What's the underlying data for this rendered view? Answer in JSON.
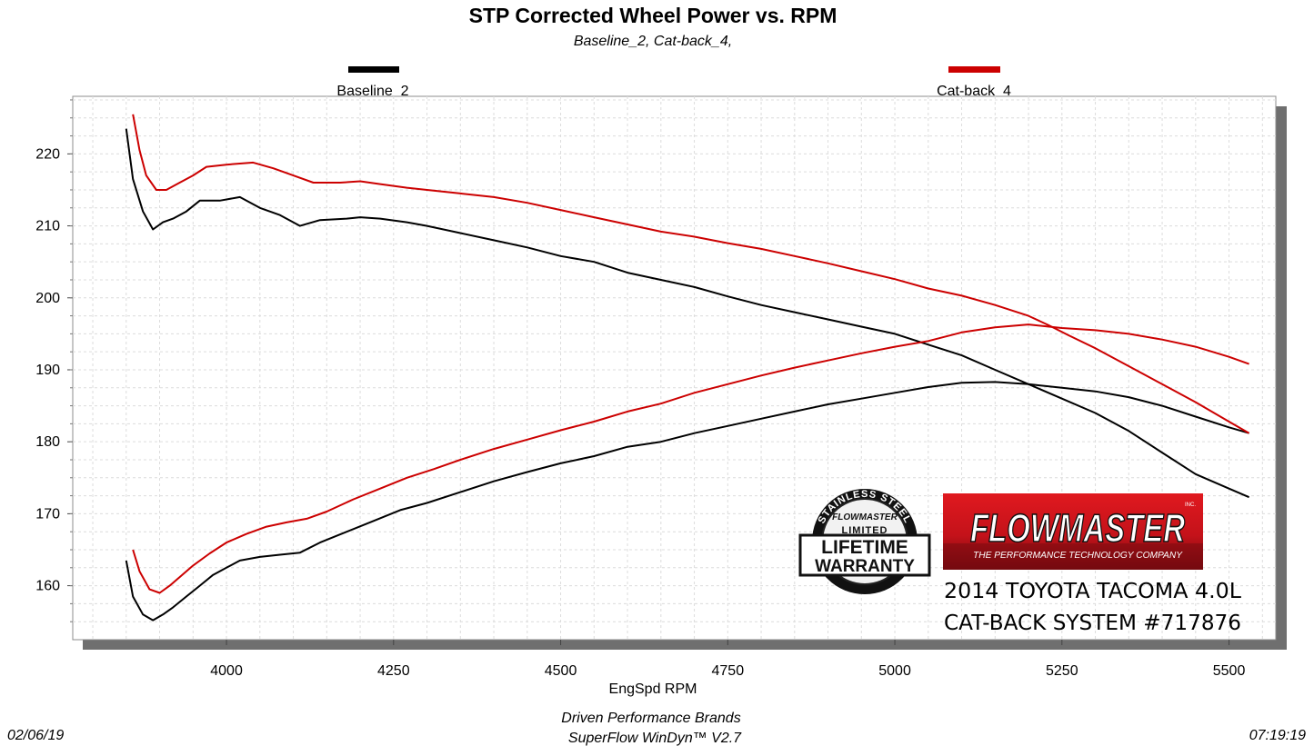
{
  "chart_data": {
    "type": "line",
    "title": "STP Corrected Wheel Power vs. RPM",
    "subtitle": "Baseline_2, Cat-back_4,",
    "xlabel": "EngSpd  RPM",
    "ylabel": "",
    "xlim": [
      3770,
      5570
    ],
    "ylim": [
      152.5,
      228
    ],
    "x_ticks": [
      4000,
      4250,
      4500,
      4750,
      5000,
      5250,
      5500
    ],
    "y_ticks": [
      160,
      170,
      180,
      190,
      200,
      210,
      220
    ],
    "grid": true,
    "legend_position": "top",
    "series": [
      {
        "name": "Baseline_2",
        "measure": "power",
        "color": "#000000",
        "points": [
          [
            3850,
            223.5
          ],
          [
            3860,
            216.5
          ],
          [
            3875,
            212
          ],
          [
            3890,
            209.5
          ],
          [
            3905,
            210.5
          ],
          [
            3920,
            211
          ],
          [
            3940,
            212
          ],
          [
            3960,
            213.5
          ],
          [
            3990,
            213.5
          ],
          [
            4020,
            214
          ],
          [
            4050,
            212.5
          ],
          [
            4080,
            211.5
          ],
          [
            4110,
            210
          ],
          [
            4140,
            210.8
          ],
          [
            4180,
            211
          ],
          [
            4200,
            211.2
          ],
          [
            4230,
            211
          ],
          [
            4270,
            210.5
          ],
          [
            4300,
            210
          ],
          [
            4350,
            209
          ],
          [
            4400,
            208
          ],
          [
            4450,
            207
          ],
          [
            4500,
            205.8
          ],
          [
            4550,
            205
          ],
          [
            4600,
            203.5
          ],
          [
            4650,
            202.5
          ],
          [
            4700,
            201.5
          ],
          [
            4750,
            200.2
          ],
          [
            4800,
            199
          ],
          [
            4850,
            198
          ],
          [
            4900,
            197
          ],
          [
            4950,
            196
          ],
          [
            5000,
            195
          ],
          [
            5050,
            193.5
          ],
          [
            5100,
            192
          ],
          [
            5150,
            190
          ],
          [
            5200,
            188
          ],
          [
            5250,
            186
          ],
          [
            5300,
            184
          ],
          [
            5350,
            181.5
          ],
          [
            5400,
            178.5
          ],
          [
            5450,
            175.5
          ],
          [
            5500,
            173.5
          ],
          [
            5530,
            172.3
          ]
        ]
      },
      {
        "name": "Baseline_2",
        "measure": "torque",
        "color": "#000000",
        "points": [
          [
            3850,
            163.5
          ],
          [
            3860,
            158.5
          ],
          [
            3875,
            156
          ],
          [
            3890,
            155.2
          ],
          [
            3905,
            156
          ],
          [
            3920,
            157
          ],
          [
            3940,
            158.5
          ],
          [
            3960,
            160
          ],
          [
            3980,
            161.5
          ],
          [
            4000,
            162.5
          ],
          [
            4020,
            163.5
          ],
          [
            4050,
            164
          ],
          [
            4080,
            164.3
          ],
          [
            4110,
            164.6
          ],
          [
            4140,
            166
          ],
          [
            4180,
            167.5
          ],
          [
            4220,
            169
          ],
          [
            4260,
            170.5
          ],
          [
            4300,
            171.5
          ],
          [
            4350,
            173
          ],
          [
            4400,
            174.5
          ],
          [
            4450,
            175.8
          ],
          [
            4500,
            177
          ],
          [
            4550,
            178
          ],
          [
            4600,
            179.3
          ],
          [
            4650,
            180
          ],
          [
            4700,
            181.2
          ],
          [
            4750,
            182.2
          ],
          [
            4800,
            183.2
          ],
          [
            4850,
            184.2
          ],
          [
            4900,
            185.2
          ],
          [
            4950,
            186
          ],
          [
            5000,
            186.8
          ],
          [
            5050,
            187.6
          ],
          [
            5100,
            188.2
          ],
          [
            5150,
            188.3
          ],
          [
            5200,
            188
          ],
          [
            5250,
            187.5
          ],
          [
            5300,
            187
          ],
          [
            5350,
            186.2
          ],
          [
            5400,
            185
          ],
          [
            5450,
            183.5
          ],
          [
            5500,
            182
          ],
          [
            5530,
            181.2
          ]
        ]
      },
      {
        "name": "Cat-back_4",
        "measure": "power",
        "color": "#cc0000",
        "points": [
          [
            3860,
            225.5
          ],
          [
            3870,
            220.5
          ],
          [
            3880,
            217
          ],
          [
            3895,
            215
          ],
          [
            3910,
            215
          ],
          [
            3930,
            216
          ],
          [
            3950,
            217
          ],
          [
            3970,
            218.2
          ],
          [
            4000,
            218.5
          ],
          [
            4040,
            218.8
          ],
          [
            4070,
            218
          ],
          [
            4100,
            217
          ],
          [
            4130,
            216
          ],
          [
            4170,
            216
          ],
          [
            4200,
            216.2
          ],
          [
            4230,
            215.8
          ],
          [
            4270,
            215.3
          ],
          [
            4300,
            215
          ],
          [
            4350,
            214.5
          ],
          [
            4400,
            214
          ],
          [
            4450,
            213.2
          ],
          [
            4500,
            212.2
          ],
          [
            4550,
            211.2
          ],
          [
            4600,
            210.2
          ],
          [
            4650,
            209.2
          ],
          [
            4700,
            208.5
          ],
          [
            4750,
            207.6
          ],
          [
            4800,
            206.8
          ],
          [
            4850,
            205.8
          ],
          [
            4900,
            204.8
          ],
          [
            4950,
            203.7
          ],
          [
            5000,
            202.6
          ],
          [
            5050,
            201.3
          ],
          [
            5100,
            200.3
          ],
          [
            5150,
            199
          ],
          [
            5200,
            197.5
          ],
          [
            5230,
            196.2
          ],
          [
            5260,
            194.8
          ],
          [
            5300,
            193
          ],
          [
            5350,
            190.5
          ],
          [
            5400,
            188
          ],
          [
            5450,
            185.5
          ],
          [
            5500,
            182.8
          ],
          [
            5530,
            181.2
          ]
        ]
      },
      {
        "name": "Cat-back_4",
        "measure": "torque",
        "color": "#cc0000",
        "points": [
          [
            3860,
            165
          ],
          [
            3870,
            162
          ],
          [
            3885,
            159.5
          ],
          [
            3900,
            159
          ],
          [
            3915,
            160
          ],
          [
            3930,
            161.2
          ],
          [
            3950,
            162.8
          ],
          [
            3975,
            164.5
          ],
          [
            4000,
            166
          ],
          [
            4030,
            167.2
          ],
          [
            4060,
            168.2
          ],
          [
            4090,
            168.8
          ],
          [
            4120,
            169.3
          ],
          [
            4150,
            170.3
          ],
          [
            4190,
            172
          ],
          [
            4230,
            173.5
          ],
          [
            4270,
            175
          ],
          [
            4310,
            176.2
          ],
          [
            4350,
            177.5
          ],
          [
            4400,
            179
          ],
          [
            4450,
            180.3
          ],
          [
            4500,
            181.6
          ],
          [
            4550,
            182.8
          ],
          [
            4600,
            184.2
          ],
          [
            4650,
            185.3
          ],
          [
            4700,
            186.8
          ],
          [
            4750,
            188
          ],
          [
            4800,
            189.2
          ],
          [
            4850,
            190.3
          ],
          [
            4900,
            191.3
          ],
          [
            4950,
            192.3
          ],
          [
            5000,
            193.2
          ],
          [
            5050,
            194
          ],
          [
            5100,
            195.2
          ],
          [
            5150,
            195.9
          ],
          [
            5200,
            196.3
          ],
          [
            5250,
            195.8
          ],
          [
            5300,
            195.5
          ],
          [
            5350,
            195
          ],
          [
            5400,
            194.2
          ],
          [
            5450,
            193.2
          ],
          [
            5500,
            191.8
          ],
          [
            5530,
            190.8
          ]
        ]
      }
    ]
  },
  "footer": {
    "date": "02/06/19",
    "time": "07:19:19",
    "company": "Driven Performance Brands",
    "software": "SuperFlow WinDyn™  V2.7"
  },
  "badge": {
    "ring_text": "STAINLESS STEEL",
    "brand": "FLOWMASTER",
    "line1": "LIMITED",
    "line2": "LIFETIME",
    "line3": "WARRANTY"
  },
  "logo": {
    "brand": "FLOWMASTER",
    "tagline": "THE PERFORMANCE TECHNOLOGY COMPANY",
    "mark": "INC."
  },
  "caption": {
    "line1": "2014 TOYOTA TACOMA 4.0L",
    "line2": "CAT-BACK SYSTEM #717876"
  }
}
